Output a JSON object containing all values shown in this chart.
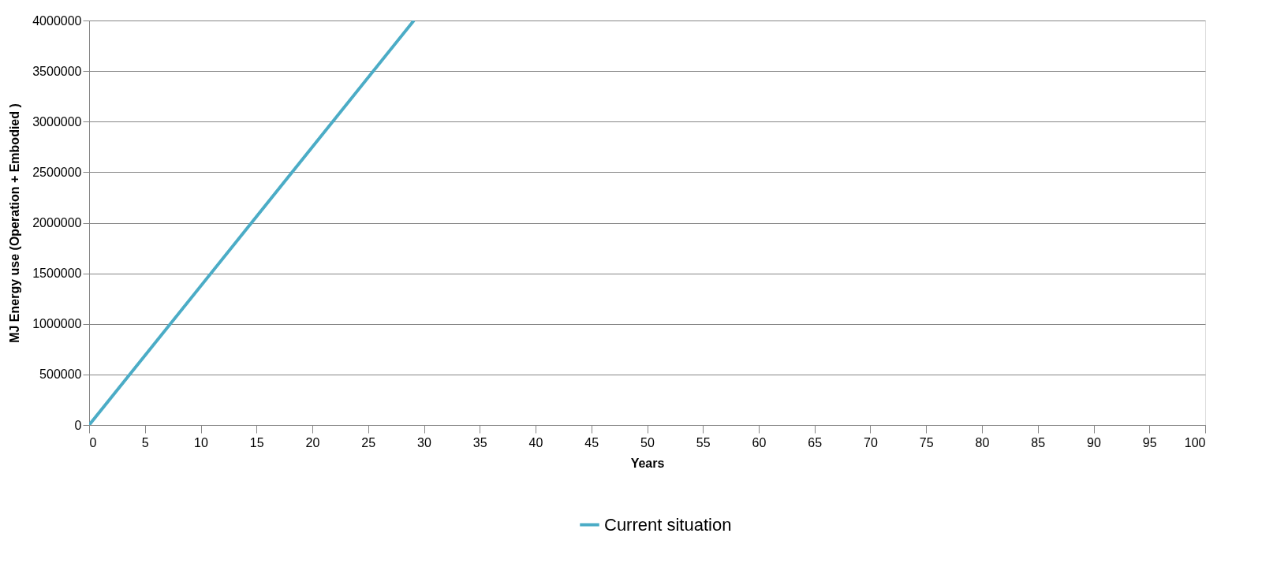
{
  "chart_data": {
    "type": "line",
    "xlabel": "Years",
    "ylabel": "MJ Energy use (Operation + Embodied )",
    "x": [
      0,
      29.1
    ],
    "series": [
      {
        "name": "Current situation",
        "color": "#4bacc6",
        "values": [
          0,
          4000000
        ]
      }
    ],
    "xlim": [
      0,
      100
    ],
    "xticks": [
      0,
      5,
      10,
      15,
      20,
      25,
      30,
      35,
      40,
      45,
      50,
      55,
      60,
      65,
      70,
      75,
      80,
      85,
      90,
      95,
      100
    ],
    "ylim": [
      0,
      4000000
    ],
    "yticks": [
      0,
      500000,
      1000000,
      1500000,
      2000000,
      2500000,
      3000000,
      3500000,
      4000000
    ],
    "grid": "y",
    "legend": "bottom",
    "marker": "none",
    "line_style": "solid"
  }
}
